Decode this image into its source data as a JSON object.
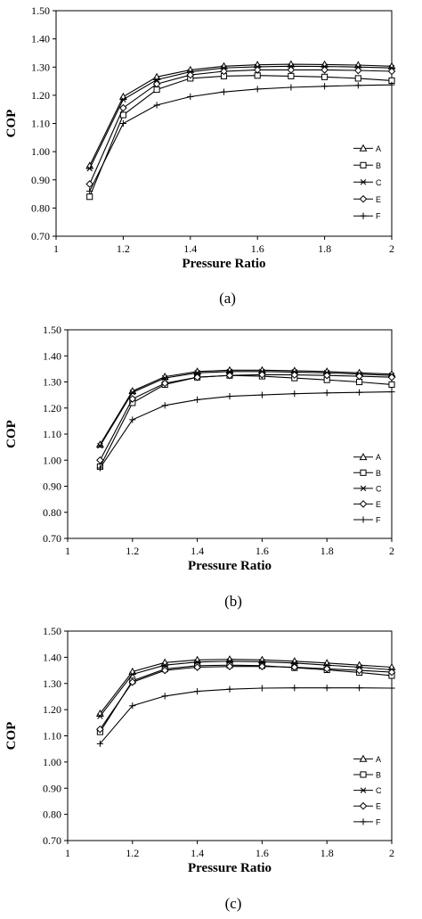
{
  "chart_data": [
    {
      "type": "line",
      "caption": "(a)",
      "xlabel": "Pressure Ratio",
      "ylabel": "COP",
      "xlim": [
        1,
        2
      ],
      "ylim": [
        0.7,
        1.5
      ],
      "xticks": [
        "1",
        "1.2",
        "1.4",
        "1.6",
        "1.8",
        "2"
      ],
      "yticks": [
        "0.70",
        "0.80",
        "0.90",
        "1.00",
        "1.10",
        "1.20",
        "1.30",
        "1.40",
        "1.50"
      ],
      "legend_position": "right",
      "x": [
        1.1,
        1.2,
        1.3,
        1.4,
        1.5,
        1.6,
        1.7,
        1.8,
        1.9,
        2.0
      ],
      "series": [
        {
          "name": "A",
          "marker": "triangle",
          "values": [
            0.95,
            1.195,
            1.265,
            1.29,
            1.303,
            1.308,
            1.31,
            1.309,
            1.307,
            1.303
          ]
        },
        {
          "name": "B",
          "marker": "square",
          "values": [
            0.84,
            1.13,
            1.22,
            1.26,
            1.268,
            1.27,
            1.268,
            1.265,
            1.26,
            1.252
          ]
        },
        {
          "name": "C",
          "marker": "asterisk",
          "values": [
            0.94,
            1.185,
            1.255,
            1.283,
            1.297,
            1.301,
            1.303,
            1.302,
            1.3,
            1.297
          ]
        },
        {
          "name": "E",
          "marker": "diamond",
          "values": [
            0.885,
            1.155,
            1.24,
            1.272,
            1.285,
            1.29,
            1.29,
            1.29,
            1.288,
            1.285
          ]
        },
        {
          "name": "F",
          "marker": "plus",
          "values": [
            0.86,
            1.1,
            1.165,
            1.195,
            1.212,
            1.222,
            1.228,
            1.232,
            1.235,
            1.237
          ]
        }
      ]
    },
    {
      "type": "line",
      "caption": "(b)",
      "xlabel": "Pressure Ratio",
      "ylabel": "COP",
      "xlim": [
        1,
        2
      ],
      "ylim": [
        0.7,
        1.5
      ],
      "xticks": [
        "1",
        "1.2",
        "1.4",
        "1.6",
        "1.8",
        "2"
      ],
      "yticks": [
        "0.70",
        "0.80",
        "0.90",
        "1.00",
        "1.10",
        "1.20",
        "1.30",
        "1.40",
        "1.50"
      ],
      "legend_position": "right",
      "x": [
        1.1,
        1.2,
        1.3,
        1.4,
        1.5,
        1.6,
        1.7,
        1.8,
        1.9,
        2.0
      ],
      "series": [
        {
          "name": "A",
          "marker": "triangle",
          "values": [
            1.06,
            1.265,
            1.32,
            1.34,
            1.345,
            1.345,
            1.343,
            1.34,
            1.335,
            1.33
          ]
        },
        {
          "name": "B",
          "marker": "square",
          "values": [
            0.975,
            1.22,
            1.29,
            1.318,
            1.325,
            1.322,
            1.315,
            1.308,
            1.3,
            1.29
          ]
        },
        {
          "name": "C",
          "marker": "asterisk",
          "values": [
            1.055,
            1.26,
            1.315,
            1.335,
            1.34,
            1.34,
            1.338,
            1.335,
            1.33,
            1.325
          ]
        },
        {
          "name": "E",
          "marker": "diamond",
          "values": [
            1.0,
            1.235,
            1.295,
            1.318,
            1.325,
            1.328,
            1.327,
            1.325,
            1.322,
            1.318
          ]
        },
        {
          "name": "F",
          "marker": "plus",
          "values": [
            0.97,
            1.155,
            1.21,
            1.232,
            1.245,
            1.25,
            1.255,
            1.258,
            1.26,
            1.262
          ]
        }
      ]
    },
    {
      "type": "line",
      "caption": "(c)",
      "xlabel": "Pressure Ratio",
      "ylabel": "COP",
      "xlim": [
        1,
        2
      ],
      "ylim": [
        0.7,
        1.5
      ],
      "xticks": [
        "1",
        "1.2",
        "1.4",
        "1.6",
        "1.8",
        "2"
      ],
      "yticks": [
        "0.70",
        "0.80",
        "0.90",
        "1.00",
        "1.10",
        "1.20",
        "1.30",
        "1.40",
        "1.50"
      ],
      "legend_position": "right",
      "x": [
        1.1,
        1.2,
        1.3,
        1.4,
        1.5,
        1.6,
        1.7,
        1.8,
        1.9,
        2.0
      ],
      "series": [
        {
          "name": "A",
          "marker": "triangle",
          "values": [
            1.185,
            1.345,
            1.38,
            1.39,
            1.392,
            1.39,
            1.385,
            1.378,
            1.37,
            1.362
          ]
        },
        {
          "name": "B",
          "marker": "square",
          "values": [
            1.115,
            1.31,
            1.355,
            1.368,
            1.37,
            1.368,
            1.36,
            1.352,
            1.342,
            1.33
          ]
        },
        {
          "name": "C",
          "marker": "asterisk",
          "values": [
            1.175,
            1.335,
            1.37,
            1.382,
            1.385,
            1.383,
            1.378,
            1.37,
            1.362,
            1.352
          ]
        },
        {
          "name": "E",
          "marker": "diamond",
          "values": [
            1.125,
            1.305,
            1.35,
            1.362,
            1.365,
            1.365,
            1.362,
            1.356,
            1.35,
            1.343
          ]
        },
        {
          "name": "F",
          "marker": "plus",
          "values": [
            1.07,
            1.215,
            1.252,
            1.27,
            1.278,
            1.282,
            1.283,
            1.283,
            1.283,
            1.282
          ]
        }
      ]
    }
  ]
}
